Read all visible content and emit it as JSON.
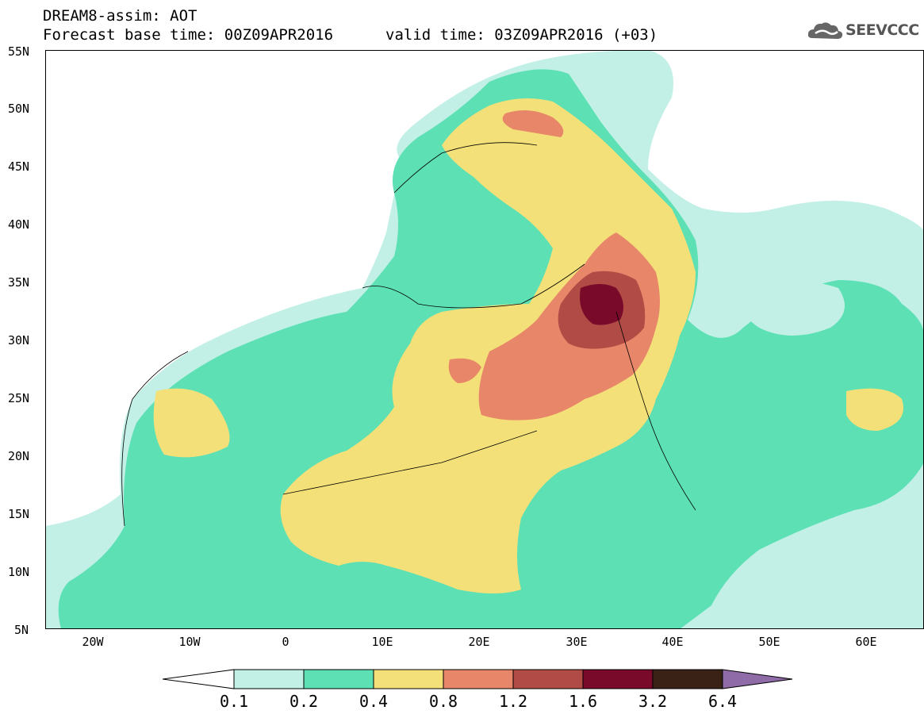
{
  "header": {
    "title_line1": "DREAM8-assim: AOT",
    "title_line2": "Forecast base time: 00Z09APR2016",
    "valid_time": "valid time: 03Z09APR2016 (+03)",
    "logo_text": "SEEVCCC"
  },
  "map": {
    "lat_labels": [
      "55N",
      "50N",
      "45N",
      "40N",
      "35N",
      "30N",
      "25N",
      "20N",
      "15N",
      "10N",
      "5N"
    ],
    "lon_labels": [
      "20W",
      "10W",
      "0",
      "10E",
      "20E",
      "30E",
      "40E",
      "50E",
      "60E"
    ],
    "lat_range": [
      5,
      55
    ],
    "lon_range": [
      -25,
      65
    ]
  },
  "colorbar": {
    "labels": [
      "0.1",
      "0.2",
      "0.4",
      "0.8",
      "1.2",
      "1.6",
      "3.2",
      "6.4"
    ],
    "colors": [
      "#ffffff",
      "#c2f0e6",
      "#5ce0b4",
      "#f4e078",
      "#e8866a",
      "#b04b45",
      "#7a0a2a",
      "#3a2216",
      "#8f6ca8"
    ]
  }
}
